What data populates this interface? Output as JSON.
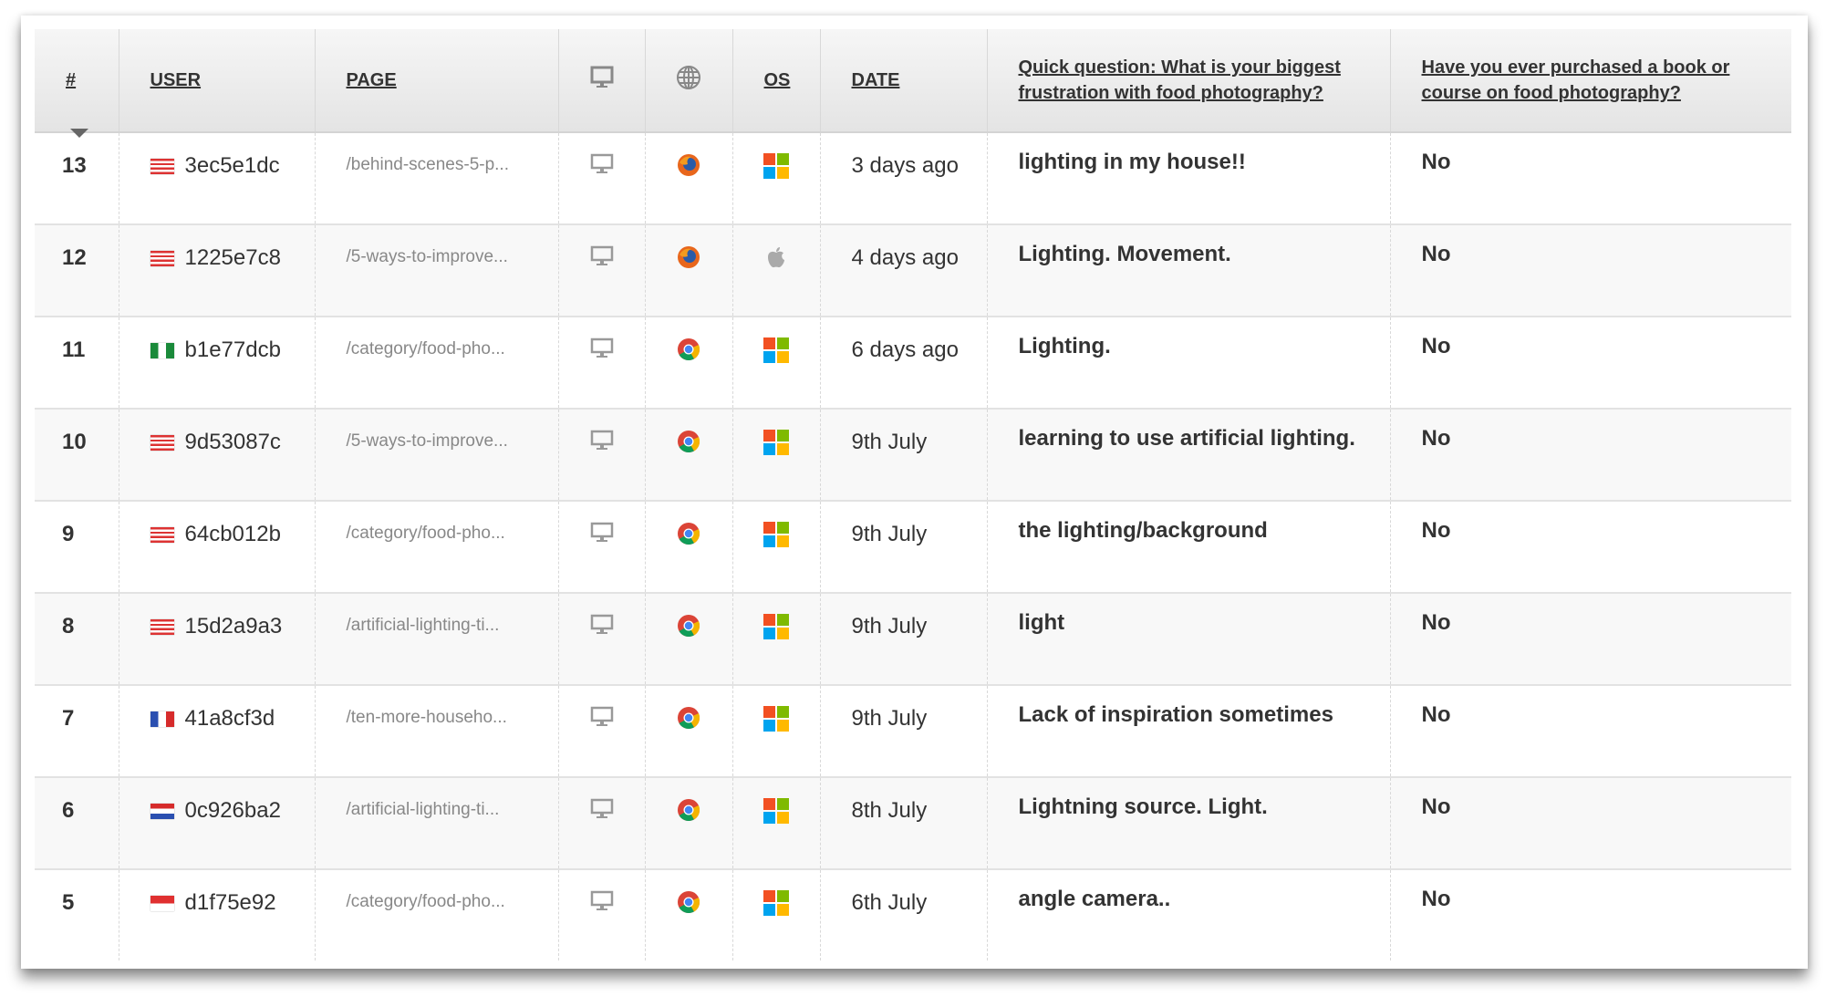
{
  "columns": {
    "num": "#",
    "user": "USER",
    "page": "PAGE",
    "device_icon": "desktop-icon",
    "browser_icon": "globe-icon",
    "os": "OS",
    "date": "DATE",
    "q1": "Quick question: What is your biggest frustration with food photography?",
    "q2": "Have you ever purchased a book or course on food photography?"
  },
  "rows": [
    {
      "num": "13",
      "flag": "us",
      "user": "3ec5e1dc",
      "page": "/behind-scenes-5-p...",
      "device": "desktop",
      "browser": "firefox",
      "os": "windows",
      "date": "3 days ago",
      "q1": "lighting in my house!!",
      "q2": "No"
    },
    {
      "num": "12",
      "flag": "us",
      "user": "1225e7c8",
      "page": "/5-ways-to-improve...",
      "device": "desktop",
      "browser": "firefox",
      "os": "apple",
      "date": "4 days ago",
      "q1": "Lighting. Movement.",
      "q2": "No"
    },
    {
      "num": "11",
      "flag": "ng",
      "user": "b1e77dcb",
      "page": "/category/food-pho...",
      "device": "desktop",
      "browser": "chrome",
      "os": "windows",
      "date": "6 days ago",
      "q1": "Lighting.",
      "q2": "No"
    },
    {
      "num": "10",
      "flag": "us",
      "user": "9d53087c",
      "page": "/5-ways-to-improve...",
      "device": "desktop",
      "browser": "chrome",
      "os": "windows",
      "date": "9th July",
      "q1": "learning to use artificial lighting.",
      "q2": "No"
    },
    {
      "num": "9",
      "flag": "us",
      "user": "64cb012b",
      "page": "/category/food-pho...",
      "device": "desktop",
      "browser": "chrome",
      "os": "windows",
      "date": "9th July",
      "q1": "the lighting/background",
      "q2": "No"
    },
    {
      "num": "8",
      "flag": "us",
      "user": "15d2a9a3",
      "page": "/artificial-lighting-ti...",
      "device": "desktop",
      "browser": "chrome",
      "os": "windows",
      "date": "9th July",
      "q1": "light",
      "q2": "No"
    },
    {
      "num": "7",
      "flag": "fr",
      "user": "41a8cf3d",
      "page": "/ten-more-househo...",
      "device": "desktop",
      "browser": "chrome",
      "os": "windows",
      "date": "9th July",
      "q1": "Lack of inspiration sometimes",
      "q2": "No"
    },
    {
      "num": "6",
      "flag": "hr",
      "user": "0c926ba2",
      "page": "/artificial-lighting-ti...",
      "device": "desktop",
      "browser": "chrome",
      "os": "windows",
      "date": "8th July",
      "q1": "Lightning source. Light.",
      "q2": "No"
    },
    {
      "num": "5",
      "flag": "id",
      "user": "d1f75e92",
      "page": "/category/food-pho...",
      "device": "desktop",
      "browser": "chrome",
      "os": "windows",
      "date": "6th July",
      "q1": "angle camera..",
      "q2": "No"
    }
  ]
}
